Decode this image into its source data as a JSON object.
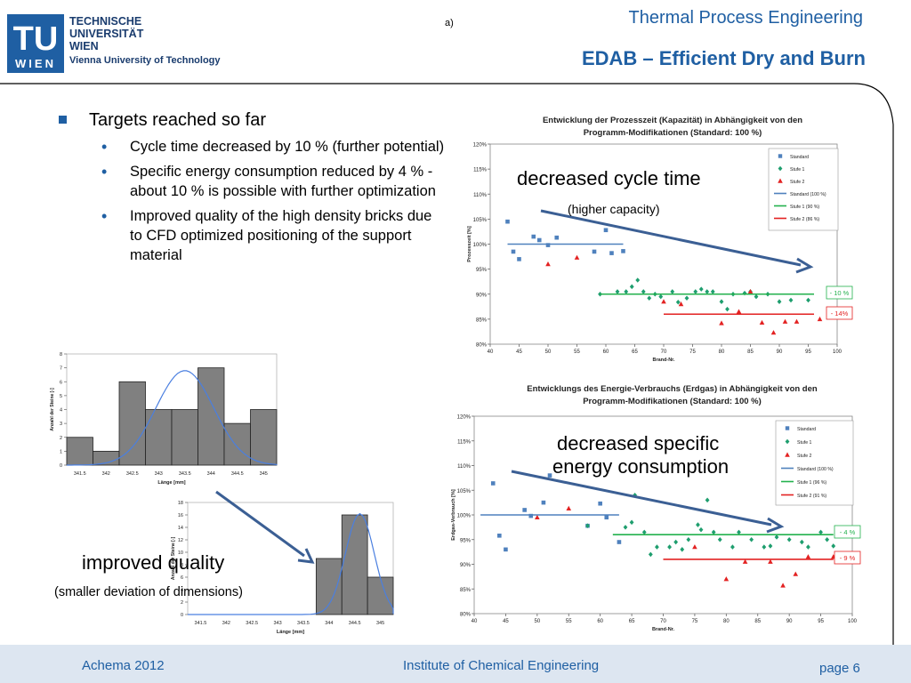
{
  "header": {
    "logo_letters": "TU",
    "logo_city": "WIEN",
    "university_line1": "TECHNISCHE",
    "university_line2": "UNIVERSITÄT",
    "university_line3": "WIEN",
    "university_line4": "Vienna University of Technology",
    "sublabel": "a)",
    "title": "Thermal Process Engineering",
    "heading": "EDAB – Efficient Dry and Burn"
  },
  "bullets": {
    "main": "Targets reached so far",
    "items": [
      "Cycle time decreased by 10 % (further potential)",
      "Specific energy consumption reduced by 4 % - about 10 % is possible with further optimization",
      "Improved quality of the high density bricks due to CFD optimized positioning of the support material"
    ]
  },
  "callouts": {
    "cycle_time": "decreased cycle time",
    "higher_capacity": "(higher capacity)",
    "energy_line1": "decreased specific",
    "energy_line2": "energy consumption",
    "quality": "improved quality",
    "deviation": "(smaller deviation of dimensions)"
  },
  "footer": {
    "left": "Achema 2012",
    "center": "Institute of Chemical Engineering",
    "right": "page 6"
  },
  "colors": {
    "brand_blue": "#1f5fa3",
    "standard": "#4f81bd",
    "stufe1": "#1e9e6e",
    "stufe2": "#e32222",
    "footer_bg": "#dde6f1"
  },
  "chart_data": [
    {
      "type": "scatter",
      "title": "Entwicklung der Prozesszeit (Kapazität) in Abhängigkeit von den Programm-Modifikationen (Standard: 100 %)",
      "xlabel": "Brand-Nr.",
      "ylabel": "Prozesszeit [%]",
      "xlim": [
        40,
        100
      ],
      "ylim": [
        80,
        120
      ],
      "x_ticks": [
        40,
        45,
        50,
        55,
        60,
        65,
        70,
        75,
        80,
        85,
        90,
        95,
        100
      ],
      "y_ticks": [
        80,
        85,
        90,
        95,
        100,
        105,
        110,
        115,
        120
      ],
      "y_tick_labels": [
        "80%",
        "85%",
        "90%",
        "95%",
        "100%",
        "105%",
        "110%",
        "115%",
        "120%"
      ],
      "legend_position": "top-right",
      "grid": false,
      "series": [
        {
          "name": "Standard",
          "marker": "square",
          "points": [
            [
              43,
              104.5
            ],
            [
              44,
              98.5
            ],
            [
              45,
              97
            ],
            [
              47.5,
              101.5
            ],
            [
              48.5,
              100.8
            ],
            [
              50,
              99.8
            ],
            [
              51.5,
              101.3
            ],
            [
              58,
              98.5
            ],
            [
              60,
              102.8
            ],
            [
              61,
              98.2
            ],
            [
              63,
              98.6
            ]
          ]
        },
        {
          "name": "Stufe 1",
          "marker": "diamond",
          "points": [
            [
              59,
              90
            ],
            [
              62,
              90.5
            ],
            [
              63.5,
              90.5
            ],
            [
              64.5,
              91.5
            ],
            [
              65.5,
              92.8
            ],
            [
              66.5,
              90.5
            ],
            [
              67.5,
              89.2
            ],
            [
              68.5,
              90
            ],
            [
              69.5,
              89.5
            ],
            [
              71.5,
              90.5
            ],
            [
              72.5,
              88.4
            ],
            [
              74,
              89.2
            ],
            [
              75.5,
              90.5
            ],
            [
              76.5,
              91
            ],
            [
              77.5,
              90.5
            ],
            [
              78.5,
              90.5
            ],
            [
              80,
              88.5
            ],
            [
              81,
              87
            ],
            [
              82,
              90
            ],
            [
              84,
              90.2
            ],
            [
              85,
              90.5
            ],
            [
              86,
              89.5
            ],
            [
              88,
              90
            ],
            [
              90,
              88.5
            ],
            [
              92,
              88.8
            ],
            [
              95,
              88.8
            ]
          ]
        },
        {
          "name": "Stufe 2",
          "marker": "triangle",
          "points": [
            [
              50,
              96
            ],
            [
              55,
              97.3
            ],
            [
              70,
              88.5
            ],
            [
              73,
              88
            ],
            [
              80,
              84.2
            ],
            [
              83,
              86.5
            ],
            [
              85,
              90.5
            ],
            [
              87,
              84.3
            ],
            [
              89,
              82.3
            ],
            [
              91,
              84.5
            ],
            [
              93,
              84.5
            ],
            [
              97,
              85
            ]
          ]
        },
        {
          "name": "Standard (100 %)",
          "line": true,
          "from": [
            43,
            100
          ],
          "to": [
            63,
            100
          ]
        },
        {
          "name": "Stufe 1 (90 %)",
          "line": true,
          "from": [
            59,
            90
          ],
          "to": [
            96,
            90
          ]
        },
        {
          "name": "Stufe 2 (86 %)",
          "line": true,
          "from": [
            70,
            86
          ],
          "to": [
            96,
            86
          ]
        }
      ],
      "annotations": [
        "- 10 %",
        "- 14%"
      ]
    },
    {
      "type": "scatter",
      "title": "Entwicklungs des Energie-Verbrauchs (Erdgas) in Abhängigkeit von den Programm-Modifikationen (Standard: 100 %)",
      "xlabel": "Brand-Nr.",
      "ylabel": "Erdgas-Verbrauch [%]",
      "xlim": [
        40,
        100
      ],
      "ylim": [
        80,
        120
      ],
      "x_ticks": [
        40,
        45,
        50,
        55,
        60,
        65,
        70,
        75,
        80,
        85,
        90,
        95,
        100
      ],
      "y_ticks": [
        80,
        85,
        90,
        95,
        100,
        105,
        110,
        115,
        120
      ],
      "y_tick_labels": [
        "80%",
        "85%",
        "90%",
        "95%",
        "100%",
        "105%",
        "110%",
        "115%",
        "120%"
      ],
      "legend_position": "top-right",
      "grid": false,
      "series": [
        {
          "name": "Standard",
          "marker": "square",
          "points": [
            [
              43,
              106.4
            ],
            [
              44,
              95.8
            ],
            [
              45,
              93
            ],
            [
              48,
              101
            ],
            [
              49,
              99.8
            ],
            [
              51,
              102.5
            ],
            [
              52,
              108
            ],
            [
              58,
              97.8
            ],
            [
              60,
              102.3
            ],
            [
              61,
              99.5
            ],
            [
              63,
              94.5
            ]
          ]
        },
        {
          "name": "Stufe 1",
          "marker": "diamond",
          "points": [
            [
              58,
              97.8
            ],
            [
              64,
              97.5
            ],
            [
              65,
              98.5
            ],
            [
              65.5,
              104
            ],
            [
              67,
              96.5
            ],
            [
              68,
              92
            ],
            [
              69,
              93.5
            ],
            [
              71,
              93.5
            ],
            [
              72,
              94.5
            ],
            [
              73,
              93
            ],
            [
              74,
              95
            ],
            [
              75.5,
              98
            ],
            [
              76,
              97
            ],
            [
              77,
              103
            ],
            [
              78,
              96.5
            ],
            [
              79,
              95
            ],
            [
              81,
              93.5
            ],
            [
              82,
              96.5
            ],
            [
              84,
              95
            ],
            [
              86,
              93.5
            ],
            [
              87,
              93.7
            ],
            [
              88,
              95.5
            ],
            [
              90,
              95
            ],
            [
              92,
              94.5
            ],
            [
              93,
              93.5
            ],
            [
              95,
              96.5
            ],
            [
              96,
              95
            ],
            [
              97,
              93.7
            ]
          ]
        },
        {
          "name": "Stufe 2",
          "marker": "triangle",
          "points": [
            [
              50,
              99.5
            ],
            [
              55,
              101.3
            ],
            [
              75,
              93.5
            ],
            [
              80,
              87
            ],
            [
              83,
              90.5
            ],
            [
              87,
              90.5
            ],
            [
              89,
              85.7
            ],
            [
              91,
              88
            ],
            [
              93,
              91.5
            ],
            [
              97,
              91.5
            ]
          ]
        },
        {
          "name": "Standard (100 %)",
          "line": true,
          "from": [
            41,
            100
          ],
          "to": [
            63,
            100
          ]
        },
        {
          "name": "Stufe 1 (96 %)",
          "line": true,
          "from": [
            62,
            96
          ],
          "to": [
            97,
            96
          ]
        },
        {
          "name": "Stufe 2 (91 %)",
          "line": true,
          "from": [
            70,
            91
          ],
          "to": [
            97,
            91
          ]
        }
      ],
      "annotations": [
        "- 4 %",
        "- 9 %"
      ]
    },
    {
      "type": "bar",
      "subtype": "histogram",
      "xlabel": "Länge [mm]",
      "ylabel": "Anzahl der Steine [-]",
      "categories": [
        "341.5",
        "342",
        "342.5",
        "343",
        "343.5",
        "344",
        "344.5",
        "345"
      ],
      "values": [
        2,
        1,
        6,
        4,
        4,
        7,
        3,
        4
      ],
      "ylim": [
        0,
        8
      ],
      "y_ticks": [
        0,
        1,
        2,
        3,
        4,
        5,
        6,
        7,
        8
      ],
      "normal_curve": {
        "mean": 343.5,
        "peak": 6.8
      }
    },
    {
      "type": "bar",
      "subtype": "histogram",
      "xlabel": "Länge [mm]",
      "ylabel": "Anzahl der Steine [-]",
      "categories": [
        "341.5",
        "342",
        "342.5",
        "343",
        "343.5",
        "344",
        "344.5",
        "345"
      ],
      "values": [
        0,
        0,
        0,
        0,
        0,
        9,
        16,
        6
      ],
      "ylim": [
        0,
        18
      ],
      "y_ticks": [
        0,
        2,
        4,
        6,
        8,
        10,
        12,
        14,
        16,
        18
      ],
      "normal_curve": {
        "mean": 344.6,
        "peak": 16.2
      }
    }
  ]
}
